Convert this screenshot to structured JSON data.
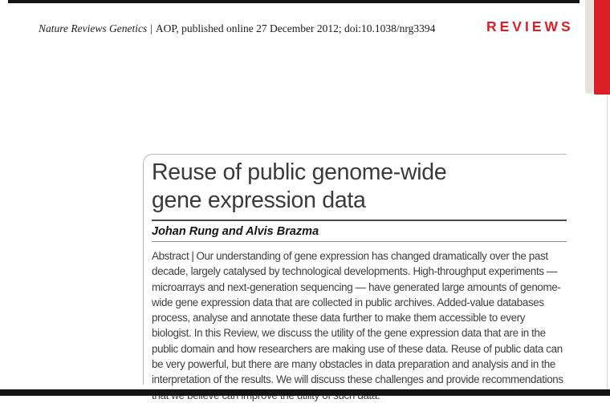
{
  "header": {
    "journal": "Nature Reviews Genetics",
    "separator": "|",
    "citation": "AOP, published online 27 December 2012; doi:10.1038/nrg3394",
    "section_label": "REVIEWS"
  },
  "article": {
    "title_lines": [
      "Reuse of public genome-wide",
      "gene expression data"
    ],
    "authors": "Johan Rung and Alvis Brazma",
    "abstract": {
      "label": "Abstract",
      "separator": "|",
      "body": "Our understanding of gene expression has changed dramatically over the past decade, largely catalysed by technological developments. High-throughput experiments — microarrays and next-generation sequencing — have generated large amounts of genome-wide gene expression data that are collected in public archives. Added-value databases process, analyse and annotate these data further to make them accessible to every biologist. In this Review, we discuss the utility of the gene expression data that are in the public domain and how researchers are making use of these data. Reuse of public data can be very powerful, but there are many obstacles in data preparation and analysis and in the interpretation of the results. We will discuss these challenges and provide recommendations that we believe can improve the utility of such data."
    }
  },
  "colors": {
    "accent_red": "#da1f26",
    "tab_beige": "#e8e3da",
    "rule_black": "#141414"
  }
}
